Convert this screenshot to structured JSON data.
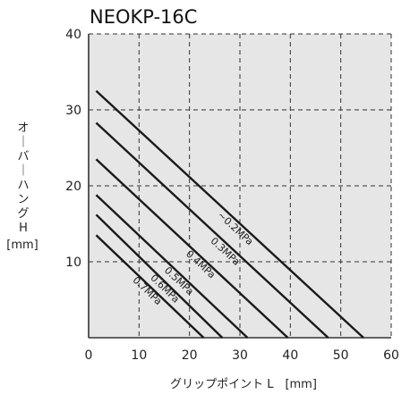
{
  "chart_data": {
    "type": "line",
    "title": "NEOKP-16C",
    "xlabel": "グリップポイント L　[mm]",
    "ylabel_chars": [
      "オ",
      "｜",
      "バ",
      "｜",
      "ハ",
      "ン",
      "グ",
      "H"
    ],
    "ylabel_unit": "[mm]",
    "xlim": [
      0,
      60
    ],
    "ylim": [
      0,
      40
    ],
    "xticks": [
      "0",
      "10",
      "20",
      "30",
      "40",
      "50",
      "60"
    ],
    "yticks": [
      "10",
      "20",
      "30",
      "40"
    ],
    "grid": true,
    "series": [
      {
        "name": "~0.2MPa",
        "x": [
          1.5,
          54.5
        ],
        "y": [
          32.5,
          0
        ]
      },
      {
        "name": "0.3MPa",
        "x": [
          1.5,
          47.5
        ],
        "y": [
          28.3,
          0
        ]
      },
      {
        "name": "0.4MPa",
        "x": [
          1.5,
          39.5
        ],
        "y": [
          23.5,
          0
        ]
      },
      {
        "name": "0.5MPa",
        "x": [
          1.5,
          31.5
        ],
        "y": [
          18.8,
          0
        ]
      },
      {
        "name": "0.6MPa",
        "x": [
          1.5,
          26.5
        ],
        "y": [
          16.2,
          0
        ]
      },
      {
        "name": "0.7MPa",
        "x": [
          1.5,
          22.8
        ],
        "y": [
          13.5,
          0
        ]
      }
    ],
    "colors": {
      "background": "#e6e6e6",
      "line": "#1a1a1a",
      "grid": "#333333"
    }
  }
}
